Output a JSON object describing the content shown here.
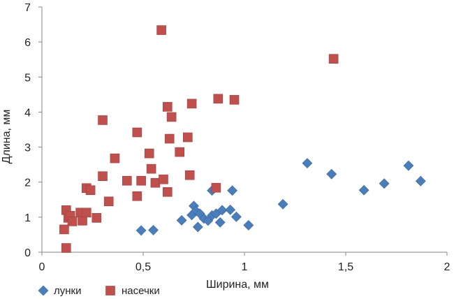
{
  "chart_data": {
    "type": "scatter",
    "title": "",
    "xlabel": "Ширина, мм",
    "ylabel": "Длина, мм",
    "xlim": [
      0,
      2
    ],
    "ylim": [
      0,
      7
    ],
    "grid": false,
    "legend_position": "bottom-left",
    "x_ticks": [
      "0",
      "0,5",
      "1",
      "1,5",
      "2"
    ],
    "y_ticks": [
      "0",
      "1",
      "2",
      "3",
      "4",
      "5",
      "6",
      "7"
    ],
    "series": [
      {
        "name": "лунки",
        "marker": "diamond",
        "color": "#4a7ebb",
        "points": [
          [
            0.49,
            0.62
          ],
          [
            0.55,
            0.63
          ],
          [
            0.69,
            0.91
          ],
          [
            0.74,
            1.06
          ],
          [
            0.75,
            1.32
          ],
          [
            0.76,
            1.18
          ],
          [
            0.77,
            0.72
          ],
          [
            0.78,
            1.1
          ],
          [
            0.8,
            0.96
          ],
          [
            0.82,
            0.9
          ],
          [
            0.84,
            1.76
          ],
          [
            0.84,
            1.05
          ],
          [
            0.86,
            1.1
          ],
          [
            0.88,
            0.85
          ],
          [
            0.89,
            1.2
          ],
          [
            0.93,
            1.21
          ],
          [
            0.94,
            1.76
          ],
          [
            0.96,
            1.01
          ],
          [
            1.02,
            0.77
          ],
          [
            1.19,
            1.37
          ],
          [
            1.31,
            2.54
          ],
          [
            1.43,
            2.23
          ],
          [
            1.59,
            1.77
          ],
          [
            1.69,
            1.96
          ],
          [
            1.81,
            2.47
          ],
          [
            1.87,
            2.03
          ]
        ]
      },
      {
        "name": "насечки",
        "marker": "square",
        "color": "#c0504d",
        "points": [
          [
            0.11,
            0.65
          ],
          [
            0.12,
            1.2
          ],
          [
            0.12,
            0.12
          ],
          [
            0.13,
            0.98
          ],
          [
            0.14,
            1.04
          ],
          [
            0.15,
            0.88
          ],
          [
            0.19,
            1.13
          ],
          [
            0.2,
            0.9
          ],
          [
            0.22,
            1.13
          ],
          [
            0.22,
            1.83
          ],
          [
            0.24,
            1.77
          ],
          [
            0.27,
            0.98
          ],
          [
            0.3,
            3.77
          ],
          [
            0.3,
            2.17
          ],
          [
            0.33,
            1.45
          ],
          [
            0.36,
            2.68
          ],
          [
            0.42,
            2.04
          ],
          [
            0.47,
            3.42
          ],
          [
            0.47,
            1.6
          ],
          [
            0.49,
            2.04
          ],
          [
            0.53,
            2.82
          ],
          [
            0.54,
            2.38
          ],
          [
            0.56,
            1.98
          ],
          [
            0.59,
            6.34
          ],
          [
            0.6,
            2.08
          ],
          [
            0.62,
            1.72
          ],
          [
            0.62,
            4.15
          ],
          [
            0.63,
            3.24
          ],
          [
            0.64,
            3.86
          ],
          [
            0.68,
            2.86
          ],
          [
            0.72,
            3.28
          ],
          [
            0.73,
            2.2
          ],
          [
            0.74,
            4.24
          ],
          [
            0.86,
            1.84
          ],
          [
            0.87,
            4.38
          ],
          [
            0.95,
            4.35
          ],
          [
            1.44,
            5.52
          ]
        ]
      }
    ]
  }
}
